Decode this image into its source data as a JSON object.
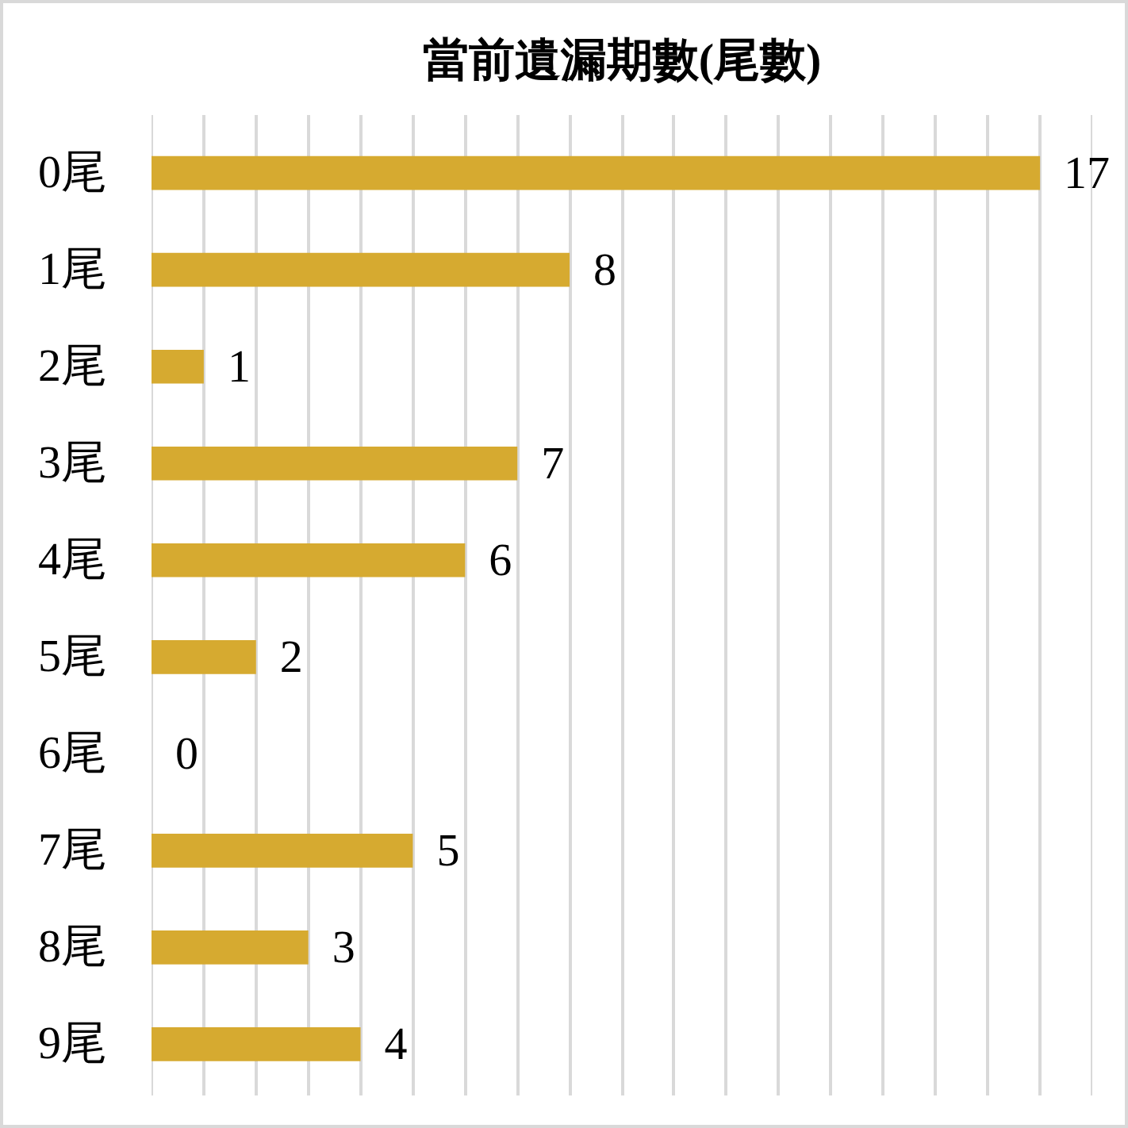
{
  "chart_data": {
    "type": "bar",
    "orientation": "horizontal",
    "title": "當前遺漏期數(尾數)",
    "categories": [
      "0尾",
      "1尾",
      "2尾",
      "3尾",
      "4尾",
      "5尾",
      "6尾",
      "7尾",
      "8尾",
      "9尾"
    ],
    "values": [
      17,
      8,
      1,
      7,
      6,
      2,
      0,
      5,
      3,
      4
    ],
    "color": "#d6aa30",
    "xlim": [
      0,
      18
    ],
    "xticks": [
      {
        "value": 0,
        "label": null
      },
      {
        "value": 1,
        "label": null
      },
      {
        "value": 2,
        "label": null
      },
      {
        "value": 3,
        "label": null
      },
      {
        "value": 4,
        "label": null
      },
      {
        "value": 5,
        "label": null
      },
      {
        "value": 6,
        "label": null
      },
      {
        "value": 7,
        "label": null
      },
      {
        "value": 8,
        "label": null
      },
      {
        "value": 9,
        "label": null
      },
      {
        "value": 10,
        "label": null
      },
      {
        "value": 11,
        "label": null
      },
      {
        "value": 12,
        "label": null
      },
      {
        "value": 13,
        "label": null
      },
      {
        "value": 14,
        "label": null
      },
      {
        "value": 15,
        "label": null
      },
      {
        "value": 16,
        "label": null
      },
      {
        "value": 17,
        "label": null
      },
      {
        "value": 18,
        "label": null
      }
    ],
    "grid": "x",
    "data_labels": true,
    "tick_labels": "y"
  }
}
